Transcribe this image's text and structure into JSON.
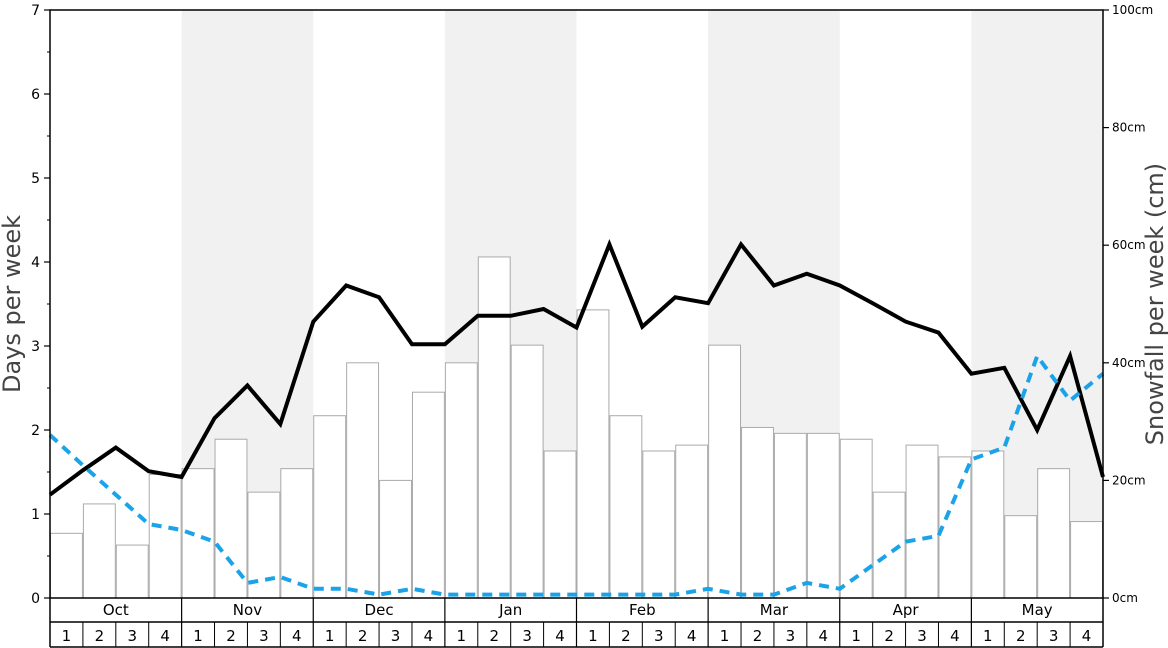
{
  "chart_data": {
    "type": "bar+line",
    "title": "",
    "ylabel": "Days per week",
    "y2label": "Snowfall per week (cm)",
    "ylim": [
      0,
      7
    ],
    "y2lim": [
      0,
      100
    ],
    "y_ticks": [
      "0",
      "1",
      "2",
      "3",
      "4",
      "5",
      "6",
      "7"
    ],
    "y2_ticks": [
      "0cm",
      "20cm",
      "40cm",
      "60cm",
      "80cm",
      "100cm"
    ],
    "months": [
      "Oct",
      "Nov",
      "Dec",
      "Jan",
      "Feb",
      "Mar",
      "Apr",
      "May"
    ],
    "weeks": [
      "1",
      "2",
      "3",
      "4"
    ],
    "shaded_months": [
      "Nov",
      "Jan",
      "Mar",
      "May"
    ],
    "grid": false,
    "colors": {
      "bars_fill": "#ffffff",
      "bars_stroke": "#aaaaaa",
      "solid_line": "#000000",
      "dashed_line": "#1aa3e8",
      "band": "#f1f1f1"
    },
    "snowfall_cm": [
      11,
      16,
      9,
      21,
      22,
      27,
      18,
      22,
      31,
      40,
      20,
      35,
      40,
      58,
      43,
      25,
      49,
      31,
      25,
      26,
      43,
      29,
      28,
      28,
      27,
      18,
      26,
      24,
      25,
      14,
      22,
      13
    ],
    "solid_line_days": [
      1.23,
      1.52,
      1.79,
      1.51,
      1.44,
      2.14,
      2.53,
      2.07,
      3.29,
      3.72,
      3.58,
      3.02,
      3.02,
      3.36,
      3.36,
      3.44,
      3.22,
      4.21,
      3.23,
      3.58,
      3.51,
      4.21,
      3.72,
      3.86,
      3.72,
      3.51,
      3.29,
      3.16,
      2.67,
      2.74,
      2.0,
      2.88,
      1.44
    ],
    "dashed_line_days": [
      1.94,
      1.58,
      1.23,
      0.88,
      0.81,
      0.67,
      0.18,
      0.25,
      0.11,
      0.11,
      0.04,
      0.11,
      0.04,
      0.04,
      0.04,
      0.04,
      0.04,
      0.04,
      0.04,
      0.04,
      0.11,
      0.04,
      0.04,
      0.18,
      0.11,
      0.39,
      0.67,
      0.74,
      1.65,
      1.79,
      2.88,
      2.35,
      2.67
    ]
  }
}
